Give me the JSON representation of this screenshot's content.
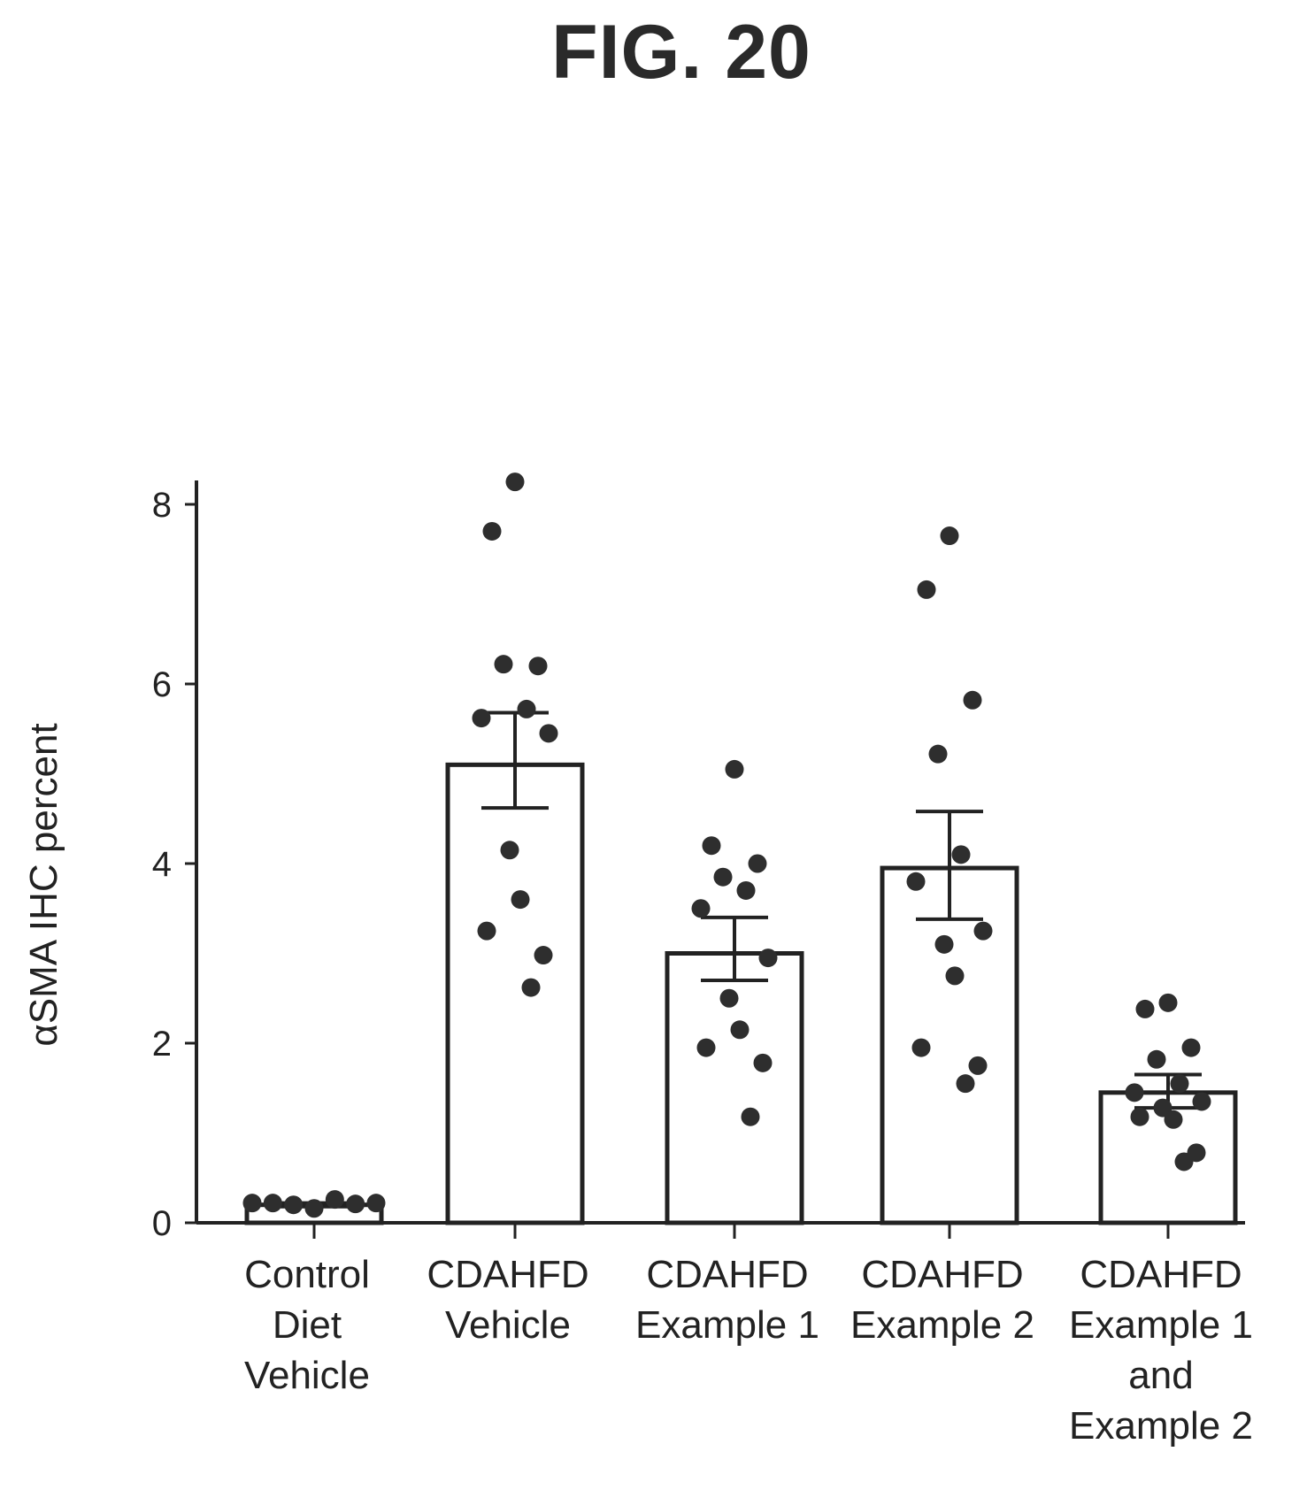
{
  "figure": {
    "label": "FIG. 20"
  },
  "chart_data": {
    "type": "bar",
    "ylabel": "αSMA IHC percent",
    "ylim": [
      0,
      8.4
    ],
    "yticks": [
      0,
      2,
      4,
      6,
      8
    ],
    "grid": false,
    "categories": [
      [
        "Control",
        "Diet",
        "Vehicle"
      ],
      [
        "CDAHFD",
        "Vehicle"
      ],
      [
        "CDAHFD",
        "Example 1"
      ],
      [
        "CDAHFD",
        "Example 2"
      ],
      [
        "CDAHFD",
        "Example 1",
        "and",
        "Example 2"
      ]
    ],
    "values": [
      0.2,
      5.1,
      3.0,
      3.95,
      1.45
    ],
    "error": [
      [
        0.18,
        0.22
      ],
      [
        4.62,
        5.68
      ],
      [
        2.7,
        3.4
      ],
      [
        3.38,
        4.58
      ],
      [
        1.28,
        1.65
      ]
    ],
    "points": [
      [
        0.22,
        0.22,
        0.2,
        0.16,
        0.26,
        0.21,
        0.22
      ],
      [
        8.25,
        7.7,
        6.2,
        6.22,
        5.72,
        5.62,
        5.45,
        4.15,
        3.6,
        3.25,
        2.98,
        2.62
      ],
      [
        5.05,
        4.2,
        4.0,
        3.85,
        3.7,
        3.5,
        2.95,
        2.5,
        2.15,
        1.95,
        1.78,
        1.18
      ],
      [
        7.65,
        7.05,
        5.82,
        5.22,
        4.1,
        3.8,
        3.25,
        3.1,
        2.75,
        1.95,
        1.75,
        1.55
      ],
      [
        2.45,
        2.38,
        1.95,
        1.82,
        1.55,
        1.45,
        1.35,
        1.28,
        1.15,
        1.18,
        0.78,
        0.68
      ]
    ]
  }
}
